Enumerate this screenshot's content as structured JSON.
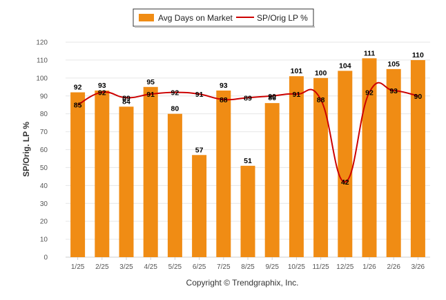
{
  "chart_data": {
    "type": "bar+line",
    "title": "",
    "ylabel": "SP/Orig. LP %",
    "xlabel": "",
    "ylim": [
      0,
      120
    ],
    "y_ticks": [
      0,
      10,
      20,
      30,
      40,
      50,
      60,
      70,
      80,
      90,
      100,
      110,
      120
    ],
    "categories": [
      "1/25",
      "2/25",
      "3/25",
      "4/25",
      "5/25",
      "6/25",
      "7/25",
      "8/25",
      "9/25",
      "10/25",
      "11/25",
      "12/25",
      "1/26",
      "2/26",
      "3/26"
    ],
    "series": [
      {
        "name": "Avg Days on Market",
        "kind": "bar",
        "color": "#F08C14",
        "values": [
          92,
          93,
          84,
          95,
          80,
          57,
          93,
          51,
          86,
          101,
          100,
          104,
          111,
          105,
          110
        ]
      },
      {
        "name": "SP/Orig LP %",
        "kind": "line",
        "color": "#CC0000",
        "values": [
          85,
          92,
          89,
          91,
          92,
          91,
          88,
          89,
          90,
          91,
          88,
          42,
          92,
          93,
          90
        ]
      }
    ],
    "legend": "top-center",
    "grid": true,
    "credit": "Copyright © Trendgraphix, Inc."
  }
}
